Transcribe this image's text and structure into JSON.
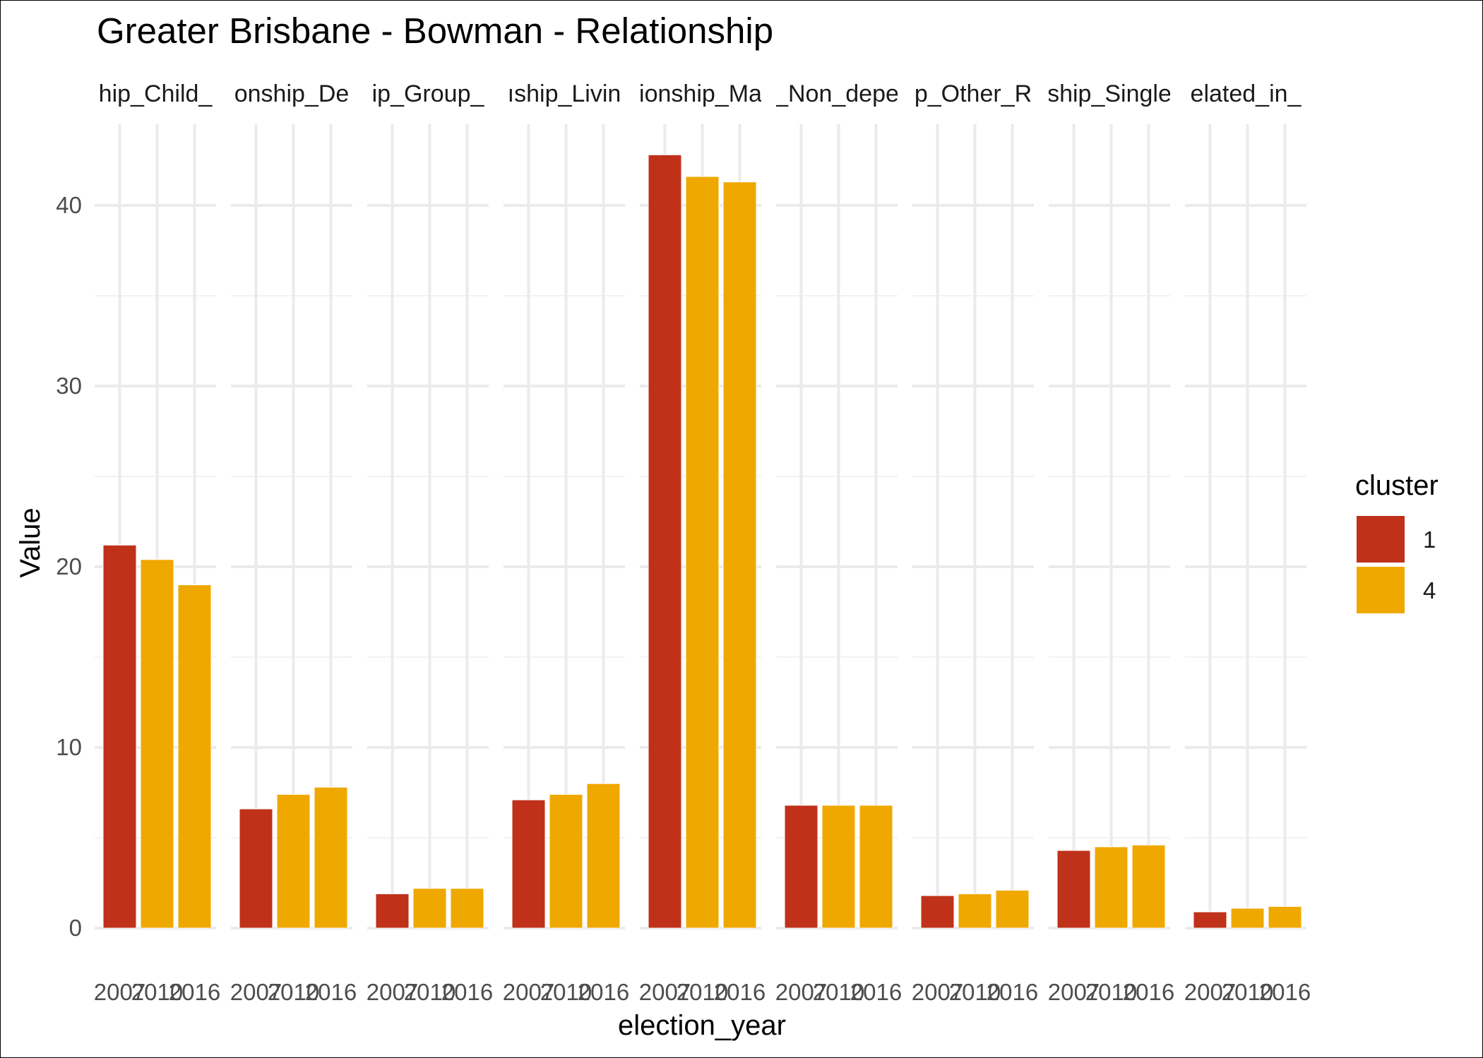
{
  "chart_data": {
    "type": "bar",
    "title": "Greater Brisbane - Bowman - Relationship",
    "xlabel": "election_year",
    "ylabel": "Value",
    "ylim": [
      0,
      44
    ],
    "yticks": [
      0,
      10,
      20,
      30,
      40
    ],
    "grid": true,
    "legend": {
      "title": "cluster",
      "position": "right",
      "entries": [
        {
          "label": "1",
          "color": "#C0311A"
        },
        {
          "label": "4",
          "color": "#EFA800"
        }
      ]
    },
    "facets": [
      {
        "label": "hip_Child_",
        "bars": [
          {
            "year": "2007",
            "value": 21.2,
            "cluster": "1"
          },
          {
            "year": "2010",
            "value": 20.4,
            "cluster": "4"
          },
          {
            "year": "2016",
            "value": 19.0,
            "cluster": "4"
          }
        ]
      },
      {
        "label": "onship_De",
        "bars": [
          {
            "year": "2007",
            "value": 6.6,
            "cluster": "1"
          },
          {
            "year": "2010",
            "value": 7.4,
            "cluster": "4"
          },
          {
            "year": "2016",
            "value": 7.8,
            "cluster": "4"
          }
        ]
      },
      {
        "label": "ip_Group_",
        "bars": [
          {
            "year": "2007",
            "value": 1.9,
            "cluster": "1"
          },
          {
            "year": "2010",
            "value": 2.2,
            "cluster": "4"
          },
          {
            "year": "2016",
            "value": 2.2,
            "cluster": "4"
          }
        ]
      },
      {
        "label": "ıship_Livin",
        "bars": [
          {
            "year": "2007",
            "value": 7.1,
            "cluster": "1"
          },
          {
            "year": "2010",
            "value": 7.4,
            "cluster": "4"
          },
          {
            "year": "2016",
            "value": 8.0,
            "cluster": "4"
          }
        ]
      },
      {
        "label": "ionship_Ma",
        "bars": [
          {
            "year": "2007",
            "value": 42.8,
            "cluster": "1"
          },
          {
            "year": "2010",
            "value": 41.6,
            "cluster": "4"
          },
          {
            "year": "2016",
            "value": 41.3,
            "cluster": "4"
          }
        ]
      },
      {
        "label": "_Non_depe",
        "bars": [
          {
            "year": "2007",
            "value": 6.8,
            "cluster": "1"
          },
          {
            "year": "2010",
            "value": 6.8,
            "cluster": "4"
          },
          {
            "year": "2016",
            "value": 6.8,
            "cluster": "4"
          }
        ]
      },
      {
        "label": "p_Other_R",
        "bars": [
          {
            "year": "2007",
            "value": 1.8,
            "cluster": "1"
          },
          {
            "year": "2010",
            "value": 1.9,
            "cluster": "4"
          },
          {
            "year": "2016",
            "value": 2.1,
            "cluster": "4"
          }
        ]
      },
      {
        "label": "ship_Single",
        "bars": [
          {
            "year": "2007",
            "value": 4.3,
            "cluster": "1"
          },
          {
            "year": "2010",
            "value": 4.5,
            "cluster": "4"
          },
          {
            "year": "2016",
            "value": 4.6,
            "cluster": "4"
          }
        ]
      },
      {
        "label": "elated_in_",
        "bars": [
          {
            "year": "2007",
            "value": 0.9,
            "cluster": "1"
          },
          {
            "year": "2010",
            "value": 1.1,
            "cluster": "4"
          },
          {
            "year": "2016",
            "value": 1.2,
            "cluster": "4"
          }
        ]
      }
    ]
  }
}
